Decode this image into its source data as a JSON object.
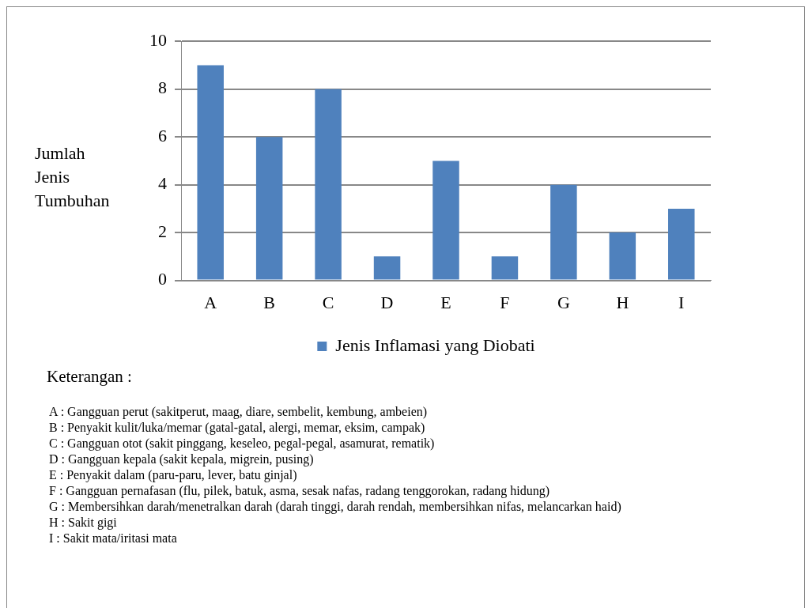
{
  "chart_data": {
    "type": "bar",
    "ylabel": "Jumlah Jenis Tumbuhan",
    "categories": [
      "A",
      "B",
      "C",
      "D",
      "E",
      "F",
      "G",
      "H",
      "I"
    ],
    "series": [
      {
        "name": "Jenis Inflamasi yang Diobati",
        "color": "#4f81bd",
        "values": [
          9,
          6,
          8,
          1,
          5,
          1,
          4,
          2,
          3
        ]
      }
    ],
    "ylim": [
      0,
      10
    ],
    "yticks": [
      0,
      2,
      4,
      6,
      8,
      10
    ],
    "grid": "y",
    "legend": "bottom",
    "annotations": [
      "Keterangan :",
      "A : Gangguan perut (sakitperut, maag, diare, sembelit, kembung, ambeien)",
      "B : Penyakit kulit/luka/memar (gatal-gatal, alergi, memar, eksim, campak)",
      "C : Gangguan otot (sakit pinggang, keseleo, pegal-pegal, asamurat, rematik)",
      "D : Gangguan kepala (sakit kepala, migrein, pusing)",
      "E : Penyakit dalam (paru-paru, lever, batu ginjal)",
      "F : Gangguan pernafasan (flu, pilek, batuk, asma, sesak nafas, radang  tenggorokan, radang  hidung)",
      "G : Membersihkan darah/menetralkan darah (darah tinggi, darah rendah, membersihkan nifas, melancarkan haid)",
      "H : Sakit gigi",
      "I : Sakit mata/iritasi mata"
    ]
  }
}
